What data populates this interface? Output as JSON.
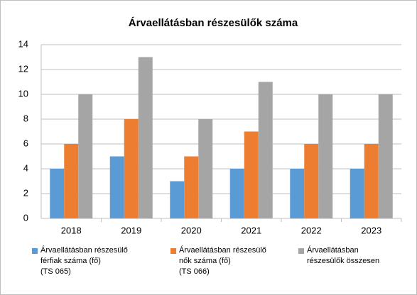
{
  "chart_data": {
    "type": "bar",
    "title": "Árvaellátásban részesülők száma",
    "categories": [
      "2018",
      "2019",
      "2020",
      "2021",
      "2022",
      "2023"
    ],
    "series": [
      {
        "name": "Árvaellátásban részesülő\nférfiak száma (fő)\n(TS 065)",
        "color": "#5b9bd5",
        "values": [
          4,
          5,
          3,
          4,
          4,
          4
        ]
      },
      {
        "name": "Árvaellátásban részesülő\nnők száma (fő)\n(TS 066)",
        "color": "#ed7d31",
        "values": [
          6,
          8,
          5,
          7,
          6,
          6
        ]
      },
      {
        "name": "Árvaellátásban\nrészesülők összesen",
        "color": "#a5a5a5",
        "values": [
          10,
          13,
          8,
          11,
          10,
          10
        ]
      }
    ],
    "ylim": [
      0,
      14
    ],
    "yticks": [
      0,
      2,
      4,
      6,
      8,
      10,
      12,
      14
    ],
    "grid": true,
    "legend": "bottom"
  }
}
